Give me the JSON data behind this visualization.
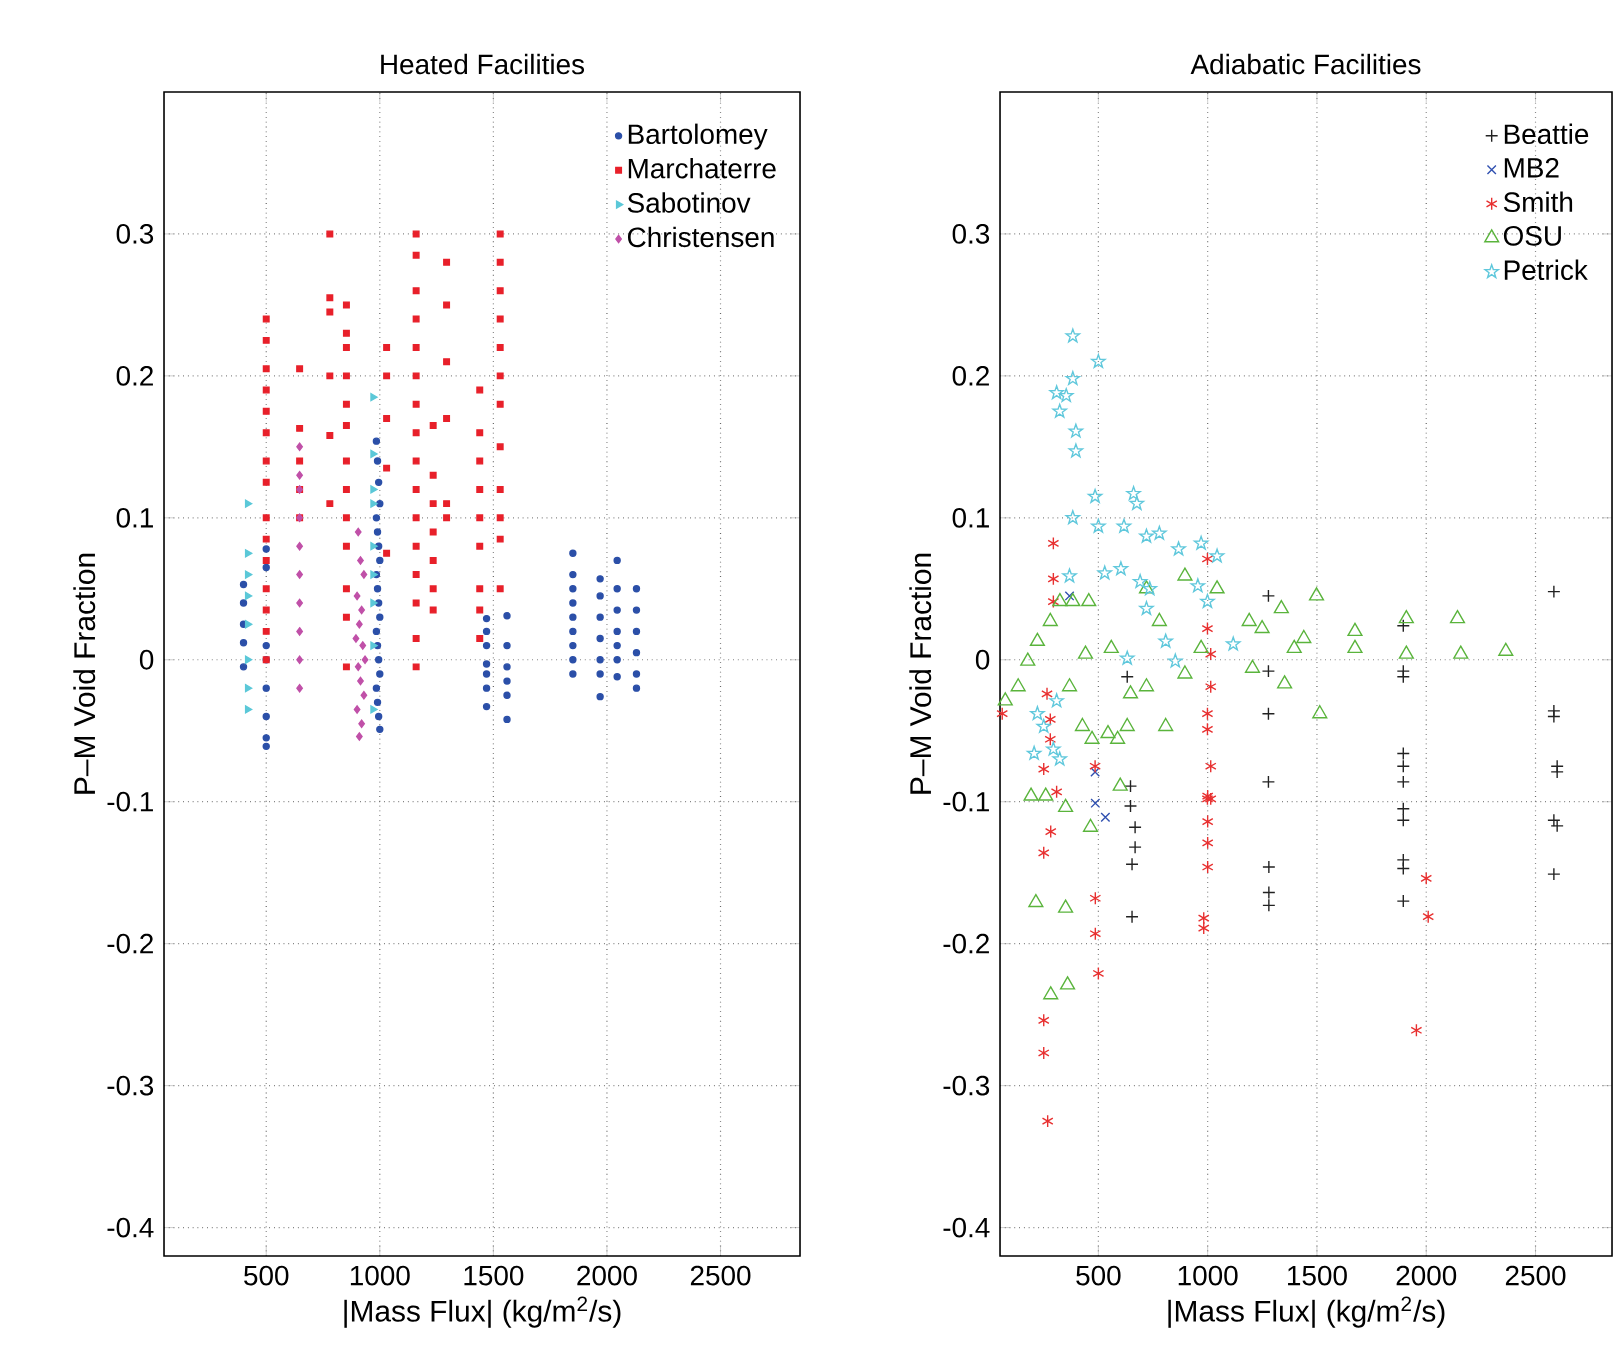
{
  "chart_data": [
    {
      "type": "scatter",
      "title": "Heated Facilities",
      "xlabel": "|Mass Flux| (kg/m$^{2}$/s)",
      "ylabel": "P–M Void Fraction",
      "xlim": [
        50,
        2850
      ],
      "ylim": [
        -0.42,
        0.4
      ],
      "xticks": [
        500,
        1000,
        1500,
        2000,
        2500
      ],
      "yticks": [
        -0.4,
        -0.3,
        -0.2,
        -0.1,
        0,
        0.1,
        0.2,
        0.3
      ],
      "grid": true,
      "legend": "top right",
      "series": [
        {
          "name": "Bartolomey",
          "color": "#2b4fa8",
          "marker": "circle",
          "x": [
            400,
            400,
            400,
            400,
            400,
            500,
            500,
            500,
            500,
            500,
            500,
            500,
            500,
            985,
            990,
            995,
            1000,
            985,
            990,
            995,
            1000,
            985,
            990,
            995,
            1000,
            985,
            990,
            995,
            1000,
            985,
            990,
            995,
            1000,
            1470,
            1470,
            1470,
            1470,
            1470,
            1470,
            1470,
            1560,
            1560,
            1560,
            1560,
            1560,
            1560,
            1850,
            1850,
            1850,
            1850,
            1850,
            1850,
            1850,
            1850,
            1850,
            1970,
            1970,
            1970,
            1970,
            1970,
            1970,
            1970,
            2045,
            2045,
            2045,
            2045,
            2045,
            2045,
            2045,
            2130,
            2130,
            2130,
            2130,
            2130,
            2130
          ],
          "values": [
            0.053,
            0.04,
            0.025,
            0.012,
            -0.005,
            0.078,
            0.065,
            0.01,
            0,
            -0.02,
            -0.04,
            -0.055,
            -0.061,
            0.154,
            0.14,
            0.125,
            0.11,
            0.1,
            0.09,
            0.08,
            0.07,
            0.06,
            0.05,
            0.04,
            0.03,
            0.02,
            0.01,
            0,
            -0.01,
            -0.02,
            -0.03,
            -0.04,
            -0.049,
            0.029,
            0.02,
            0.01,
            -0.003,
            -0.01,
            -0.02,
            -0.033,
            0.031,
            0.01,
            -0.005,
            -0.015,
            -0.025,
            -0.042,
            0.075,
            0.06,
            0.05,
            0.04,
            0.03,
            0.02,
            0.01,
            0,
            -0.01,
            0.057,
            0.045,
            0.03,
            0.015,
            0,
            -0.01,
            -0.026,
            0.07,
            0.05,
            0.035,
            0.02,
            0.01,
            0,
            -0.012,
            0.05,
            0.035,
            0.02,
            0.005,
            -0.01,
            -0.02
          ]
        },
        {
          "name": "Marchaterre",
          "color": "#e8202a",
          "marker": "square",
          "x": [
            500,
            500,
            500,
            500,
            500,
            500,
            500,
            500,
            500,
            500,
            500,
            500,
            500,
            500,
            500,
            647,
            647,
            647,
            647,
            647,
            780,
            780,
            780,
            780,
            780,
            780,
            853,
            853,
            853,
            853,
            853,
            853,
            853,
            853,
            853,
            853,
            853,
            853,
            853,
            1030,
            1030,
            1030,
            1030,
            1030,
            1160,
            1160,
            1160,
            1160,
            1160,
            1160,
            1160,
            1160,
            1160,
            1160,
            1160,
            1160,
            1160,
            1160,
            1160,
            1160,
            1235,
            1235,
            1235,
            1235,
            1235,
            1235,
            1235,
            1294,
            1294,
            1294,
            1294,
            1294,
            1294,
            1440,
            1440,
            1440,
            1440,
            1440,
            1440,
            1440,
            1440,
            1440,
            1530,
            1530,
            1530,
            1530,
            1530,
            1530,
            1530,
            1530,
            1530,
            1530,
            1530,
            1530
          ],
          "values": [
            0.24,
            0.225,
            0.205,
            0.19,
            0.175,
            0.16,
            0.14,
            0.125,
            0.1,
            0.085,
            0.07,
            0.05,
            0.035,
            0.02,
            0,
            0.205,
            0.163,
            0.14,
            0.12,
            0.1,
            0.3,
            0.255,
            0.245,
            0.2,
            0.158,
            0.11,
            0.25,
            0.23,
            0.22,
            0.2,
            0.18,
            0.165,
            0.14,
            0.12,
            0.1,
            0.08,
            0.05,
            0.03,
            -0.005,
            0.22,
            0.2,
            0.17,
            0.135,
            0.075,
            0.3,
            0.285,
            0.26,
            0.24,
            0.22,
            0.2,
            0.18,
            0.16,
            0.14,
            0.12,
            0.1,
            0.08,
            0.06,
            0.04,
            0.015,
            -0.005,
            0.165,
            0.13,
            0.11,
            0.09,
            0.07,
            0.05,
            0.035,
            0.28,
            0.25,
            0.21,
            0.17,
            0.11,
            0.1,
            0.19,
            0.16,
            0.14,
            0.12,
            0.1,
            0.08,
            0.05,
            0.035,
            0.015,
            0.3,
            0.28,
            0.26,
            0.24,
            0.22,
            0.2,
            0.18,
            0.15,
            0.12,
            0.1,
            0.085,
            0.05
          ]
        },
        {
          "name": "Sabotinov",
          "color": "#5bc8d8",
          "marker": "triangle-right",
          "x": [
            418,
            418,
            418,
            418,
            418,
            418,
            418,
            418,
            970,
            970,
            970,
            970,
            970,
            970,
            970,
            970,
            970
          ],
          "values": [
            0.11,
            0.075,
            0.06,
            0.045,
            0.025,
            0,
            -0.02,
            -0.035,
            0.185,
            0.145,
            0.12,
            0.11,
            0.08,
            0.06,
            0.04,
            0.01,
            -0.035
          ]
        },
        {
          "name": "Christensen",
          "color": "#c050a8",
          "marker": "diamond",
          "x": [
            647,
            647,
            647,
            647,
            647,
            647,
            647,
            647,
            647,
            647,
            905,
            915,
            930,
            900,
            920,
            910,
            895,
            925,
            935,
            905,
            915,
            930,
            900,
            920,
            910
          ],
          "values": [
            0.15,
            0.13,
            0.12,
            0.1,
            0.08,
            0.06,
            0.04,
            0.02,
            0,
            -0.02,
            0.09,
            0.07,
            0.06,
            0.045,
            0.035,
            0.025,
            0.015,
            0.01,
            0,
            -0.005,
            -0.015,
            -0.025,
            -0.035,
            -0.045,
            -0.054
          ]
        }
      ]
    },
    {
      "type": "scatter",
      "title": "Adiabatic Facilities",
      "xlabel": "|Mass Flux| (kg/m$^{2}$/s)",
      "ylabel": "P–M Void Fraction",
      "xlim": [
        50,
        2850
      ],
      "ylim": [
        -0.42,
        0.4
      ],
      "xticks": [
        500,
        1000,
        1500,
        2000,
        2500
      ],
      "yticks": [
        -0.4,
        -0.3,
        -0.2,
        -0.1,
        0,
        0.1,
        0.2,
        0.3
      ],
      "grid": true,
      "legend": "top right",
      "series": [
        {
          "name": "Beattie",
          "color": "#222222",
          "marker": "plus",
          "x": [
            632,
            647,
            647,
            668,
            668,
            654,
            654,
            1278,
            1278,
            1278,
            1278,
            1280,
            1280,
            1280,
            1895,
            1895,
            1895,
            1895,
            1895,
            1895,
            1895,
            1895,
            1895,
            1895,
            1895,
            2584,
            2584,
            2584,
            2599,
            2599,
            2584,
            2599,
            2584
          ],
          "values": [
            -0.012,
            -0.089,
            -0.103,
            -0.118,
            -0.132,
            -0.144,
            -0.181,
            0.045,
            -0.008,
            -0.038,
            -0.086,
            -0.146,
            -0.164,
            -0.173,
            0.024,
            -0.008,
            -0.012,
            -0.066,
            -0.075,
            -0.086,
            -0.105,
            -0.113,
            -0.141,
            -0.147,
            -0.17,
            0.048,
            -0.036,
            -0.04,
            -0.075,
            -0.079,
            -0.113,
            -0.117,
            -0.151
          ]
        },
        {
          "name": "MB2",
          "color": "#3050b0",
          "marker": "cross",
          "x": [
            368,
            485,
            486,
            532
          ],
          "values": [
            0.045,
            -0.079,
            -0.101,
            -0.111
          ]
        },
        {
          "name": "Smith",
          "color": "#e83030",
          "x": [
            294,
            294,
            294,
            999,
            60,
            265,
            280,
            280,
            250,
            309,
            485,
            999,
            1014,
            1014,
            999,
            999,
            1014,
            999,
            1014,
            250,
            282,
            250,
            250,
            268,
            486,
            500,
            486,
            1000,
            1000,
            1000,
            982,
            982,
            1000,
            2000,
            2009,
            1955
          ],
          "values": [
            0.082,
            0.057,
            0.041,
            0.071,
            -0.038,
            -0.024,
            -0.042,
            -0.056,
            -0.077,
            -0.093,
            -0.075,
            0.022,
            0.004,
            -0.019,
            -0.038,
            -0.049,
            -0.075,
            -0.098,
            -0.098,
            -0.136,
            -0.121,
            -0.254,
            -0.277,
            -0.325,
            -0.193,
            -0.221,
            -0.168,
            -0.096,
            -0.114,
            -0.146,
            -0.182,
            -0.189,
            -0.129,
            -0.154,
            -0.181,
            -0.261
          ]
        },
        {
          "name": "OSU",
          "color": "#5ab43c",
          "marker": "triangle",
          "x": [
            74,
            133,
            177,
            221,
            280,
            324,
            383,
            456,
            441,
            368,
            427,
            471,
            544,
            588,
            632,
            559,
            647,
            720,
            779,
            720,
            896,
            808,
            896,
            970,
            1043,
            1190,
            1205,
            1337,
            1352,
            1440,
            1498,
            1513,
            1674,
            1674,
            1909,
            1909,
            2143,
            2158,
            2364,
            1249,
            1396,
            259,
            350,
            464,
            214,
            350,
            282,
            359,
            600,
            192
          ],
          "values": [
            -0.029,
            -0.019,
            -0.001,
            0.013,
            0.027,
            0.041,
            0.041,
            0.041,
            0.004,
            -0.019,
            -0.047,
            -0.056,
            -0.052,
            -0.056,
            -0.047,
            0.008,
            -0.024,
            -0.019,
            0.027,
            0.05,
            0.059,
            -0.047,
            -0.01,
            0.008,
            0.05,
            0.027,
            -0.006,
            0.036,
            -0.017,
            0.015,
            0.045,
            -0.038,
            0.02,
            0.008,
            0.029,
            0.004,
            0.029,
            0.004,
            0.006,
            0.022,
            0.008,
            -0.096,
            -0.104,
            -0.118,
            -0.171,
            -0.175,
            -0.236,
            -0.229,
            -0.089,
            -0.096
          ]
        },
        {
          "name": "Petrick",
          "color": "#60c8dc",
          "marker": "star",
          "x": [
            383,
            500,
            309,
            353,
            383,
            323,
            397,
            397,
            383,
            485,
            500,
            661,
            676,
            617,
            720,
            779,
            867,
            970,
            1043,
            529,
            603,
            691,
            735,
            720,
            955,
            999,
            368,
            632,
            808,
            1117,
            221,
            250,
            294,
            323,
            206,
            309,
            852
          ],
          "values": [
            0.228,
            0.21,
            0.188,
            0.186,
            0.198,
            0.175,
            0.161,
            0.147,
            0.1,
            0.115,
            0.094,
            0.117,
            0.11,
            0.094,
            0.087,
            0.089,
            0.078,
            0.082,
            0.073,
            0.061,
            0.064,
            0.055,
            0.05,
            0.036,
            0.052,
            0.041,
            0.059,
            0.001,
            0.013,
            0.011,
            -0.038,
            -0.047,
            -0.063,
            -0.07,
            -0.066,
            -0.029,
            -0.001
          ]
        }
      ]
    }
  ]
}
